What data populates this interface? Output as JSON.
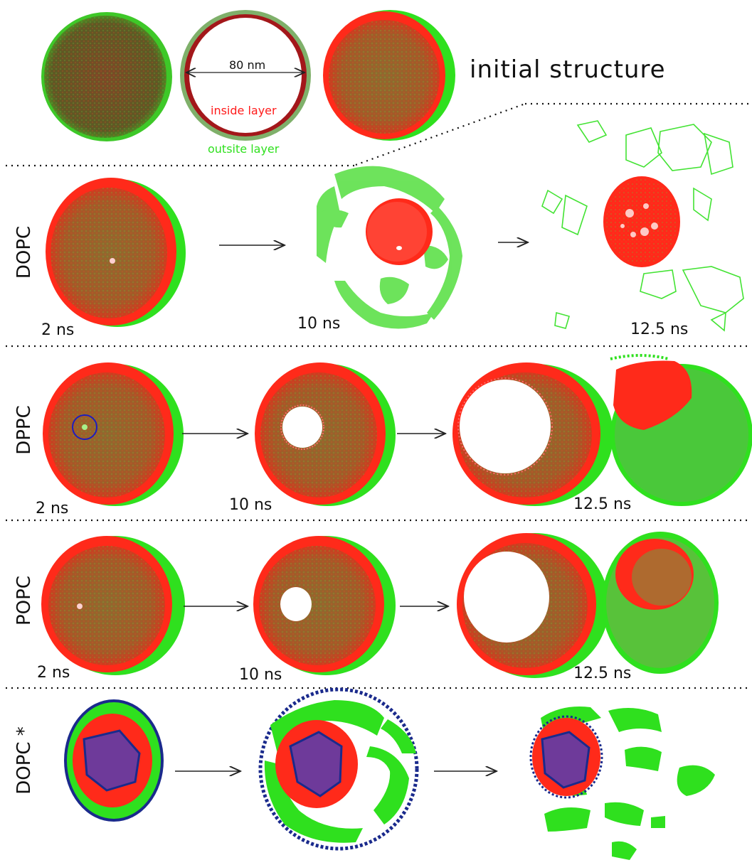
{
  "header": {
    "title": "initial  structure",
    "diameter_label": "80 nm",
    "inside_label": "inside layer",
    "outside_label": "outsite layer"
  },
  "rows": [
    {
      "name": "DOPC",
      "times": [
        "2 ns",
        "10 ns",
        "12.5 ns"
      ]
    },
    {
      "name": "DPPC",
      "times": [
        "2 ns",
        "10 ns",
        "12.5 ns"
      ]
    },
    {
      "name": "POPC",
      "times": [
        "2 ns",
        "10 ns",
        "12.5 ns"
      ]
    },
    {
      "name": "DOPC *",
      "times": []
    }
  ],
  "colors": {
    "inside": "#ff2a1a",
    "outside": "#22e61c",
    "mix": "#a66a2a",
    "darkred": "#a3171a",
    "headgroup": "#1a2a8c",
    "arrow": "#222222"
  }
}
